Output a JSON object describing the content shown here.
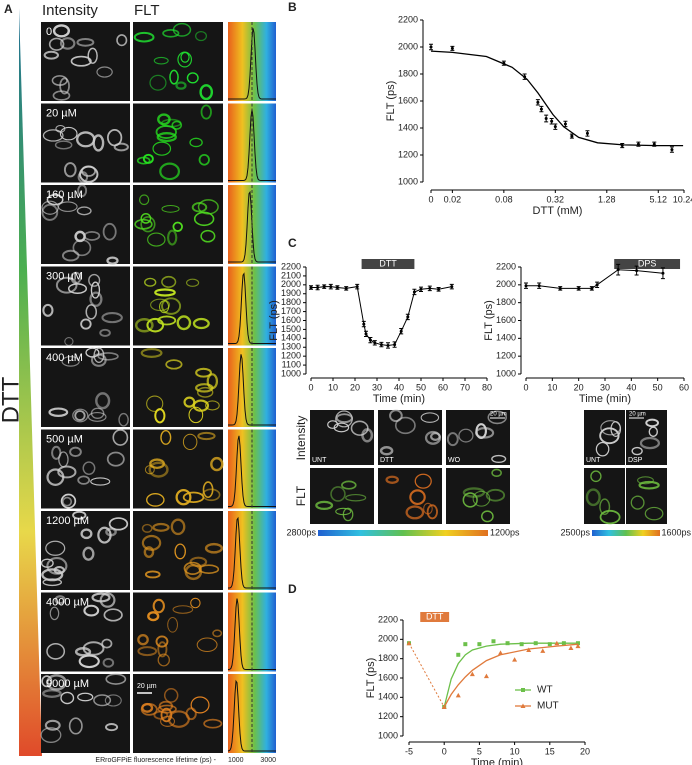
{
  "panel_a": {
    "letter": "A",
    "column_headings": [
      "Intensity",
      "FLT"
    ],
    "treatment": "DTT",
    "rows": [
      "0",
      "20 µM",
      "160 µM",
      "300 µM",
      "400 µM",
      "500 µM",
      "1200 µM",
      "4000 µM",
      "9000 µM"
    ],
    "lifetime_peaks": [
      2050,
      2000,
      1900,
      1650,
      1550,
      1450,
      1400,
      1380,
      1350
    ],
    "reference_lifetime": 2000,
    "scale_bar": "20 µm",
    "axis_label": "ERroGFPiE fluorescence lifetime (ps) -",
    "axis_ticks": [
      1000,
      3000
    ]
  },
  "panel_c": {
    "letter": "C",
    "intensity_label": "Intensity",
    "flt_label": "FLT",
    "left_images": [
      "UNT",
      "DTT",
      "WO"
    ],
    "right_images": [
      "UNT",
      "DSP"
    ],
    "scale_bar": "20 µm",
    "left_colorbar": [
      "2800ps",
      "1200ps"
    ],
    "right_colorbar": [
      "2500ps",
      "1600ps"
    ]
  },
  "chart_data": [
    {
      "type": "scatter",
      "letter": "B",
      "x_label": "DTT (mM)",
      "y_label": "FLT (ps)",
      "xscale": "symlog",
      "linthresh": 0.02,
      "linscale": 0.25,
      "xlim": [
        0,
        10.24
      ],
      "ylim": [
        1000,
        2200
      ],
      "xticks": [
        0,
        0.02,
        0.08,
        0.32,
        1.28,
        5.12,
        10.24
      ],
      "yticks": [
        1000,
        1200,
        1400,
        1600,
        1800,
        2000,
        2200
      ],
      "series": [
        {
          "color": "#000000",
          "marker": "dot",
          "x": [
            0,
            0.02,
            0.08,
            0.14,
            0.2,
            0.22,
            0.25,
            0.29,
            0.32,
            0.42,
            0.5,
            0.76,
            1.94,
            3,
            4.6,
            7.4
          ],
          "values": [
            2000,
            1990,
            1880,
            1780,
            1590,
            1540,
            1470,
            1450,
            1410,
            1430,
            1340,
            1360,
            1270,
            1280,
            1280,
            1240
          ],
          "errors": [
            20,
            15,
            15,
            20,
            20,
            20,
            25,
            20,
            20,
            20,
            15,
            20,
            15,
            15,
            15,
            20
          ],
          "fit_x": [
            0,
            0.02,
            0.05,
            0.1,
            0.15,
            0.2,
            0.3,
            0.4,
            0.6,
            1,
            2,
            5,
            10
          ],
          "fit_values": [
            1970,
            1960,
            1930,
            1850,
            1760,
            1660,
            1500,
            1410,
            1330,
            1290,
            1275,
            1270,
            1270
          ]
        }
      ]
    },
    {
      "type": "line",
      "x_label": "Time (min)",
      "y_label": "FLT (ps)",
      "xlim": [
        0,
        80
      ],
      "ylim": [
        1000,
        2200
      ],
      "xticks": [
        0,
        10,
        20,
        30,
        40,
        50,
        60,
        70,
        80
      ],
      "yticks": [
        1000,
        1100,
        1200,
        1300,
        1400,
        1500,
        1600,
        1700,
        1800,
        1900,
        2000,
        2100,
        2200
      ],
      "annotation": {
        "text": "DTT",
        "x": [
          23,
          47
        ],
        "color": "#444444"
      },
      "series": [
        {
          "color": "#000000",
          "marker": "dot",
          "connect": true,
          "x": [
            0,
            3,
            6,
            9,
            12,
            16,
            21,
            24,
            25,
            27,
            29,
            32,
            35,
            38,
            41,
            44,
            47,
            50,
            54,
            58,
            64
          ],
          "values": [
            1970,
            1970,
            1980,
            1980,
            1970,
            1960,
            1980,
            1560,
            1450,
            1380,
            1350,
            1330,
            1320,
            1330,
            1480,
            1640,
            1920,
            1950,
            1960,
            1950,
            1980
          ],
          "errors": [
            20,
            25,
            20,
            25,
            20,
            20,
            25,
            30,
            30,
            30,
            25,
            25,
            30,
            30,
            30,
            30,
            30,
            25,
            25,
            20,
            25
          ]
        }
      ]
    },
    {
      "type": "line",
      "x_label": "Time (min)",
      "y_label": "FLT (ps)",
      "xlim": [
        0,
        60
      ],
      "ylim": [
        1000,
        2200
      ],
      "xticks": [
        0,
        10,
        20,
        30,
        40,
        50,
        60
      ],
      "yticks": [
        1000,
        1200,
        1400,
        1600,
        1800,
        2000,
        2200
      ],
      "annotation": {
        "text": "DPS",
        "x": [
          33.5,
          58.5
        ],
        "color": "#444444"
      },
      "series": [
        {
          "color": "#000000",
          "marker": "dot",
          "connect": true,
          "x": [
            0,
            5,
            13,
            20,
            25,
            27,
            35,
            42,
            52
          ],
          "values": [
            1990,
            1990,
            1960,
            1960,
            1960,
            2000,
            2170,
            2160,
            2130
          ],
          "errors": [
            30,
            30,
            20,
            20,
            20,
            30,
            60,
            50,
            60
          ]
        }
      ]
    },
    {
      "type": "scatter",
      "letter": "D",
      "x_label": "Time (min)",
      "y_label": "FLT (ps)",
      "xlim": [
        -5,
        20
      ],
      "ylim": [
        1000,
        2200
      ],
      "xticks": [
        -5,
        0,
        5,
        10,
        15,
        20
      ],
      "yticks": [
        1000,
        1200,
        1400,
        1600,
        1800,
        2000,
        2200
      ],
      "legend": "right",
      "annotation": {
        "text": "DTT",
        "x": [
          -3.4,
          0.7
        ],
        "color": "#e07a3c"
      },
      "series": [
        {
          "name": "WT",
          "color": "#6cc04a",
          "marker": "square",
          "x": [
            -5,
            0,
            2,
            3,
            5,
            7,
            9,
            11,
            13,
            15,
            17,
            19
          ],
          "values": [
            1960,
            1300,
            1840,
            1950,
            1950,
            1980,
            1960,
            1950,
            1960,
            1950,
            1960,
            1960
          ],
          "fit_x": [
            0,
            1,
            2,
            3,
            4,
            6,
            8,
            12,
            16,
            19
          ],
          "fit_values": [
            1300,
            1590,
            1750,
            1840,
            1890,
            1930,
            1950,
            1960,
            1960,
            1960
          ]
        },
        {
          "name": "MUT",
          "color": "#e07a3c",
          "marker": "triangle",
          "x": [
            -5,
            0,
            2,
            4,
            6,
            8,
            10,
            12,
            14,
            16,
            18,
            19
          ],
          "values": [
            1960,
            1300,
            1420,
            1640,
            1620,
            1860,
            1790,
            1890,
            1880,
            1960,
            1910,
            1930
          ],
          "fit_x": [
            0,
            1,
            2,
            3,
            4,
            6,
            8,
            12,
            16,
            19
          ],
          "fit_values": [
            1300,
            1430,
            1530,
            1610,
            1680,
            1780,
            1840,
            1900,
            1930,
            1950
          ]
        },
        {
          "color": "#e07a3c",
          "style": "dotted",
          "x": [
            -5,
            0
          ],
          "values": [
            1960,
            1300
          ]
        }
      ]
    }
  ]
}
